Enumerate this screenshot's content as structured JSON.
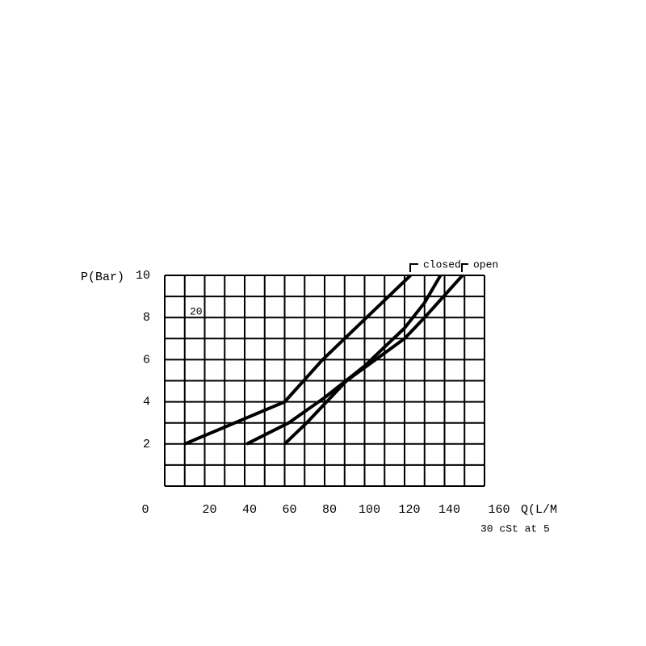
{
  "chart_data": {
    "type": "line",
    "y_label": "P(Bar)",
    "x_label": "Q(L/M",
    "note": "30 cSt at 5",
    "annotations": [
      "20",
      "closed",
      "open"
    ],
    "xlim": [
      0,
      160
    ],
    "ylim": [
      0,
      10
    ],
    "xticks": [
      0,
      20,
      40,
      60,
      80,
      100,
      120,
      140,
      160
    ],
    "yticks": [
      2,
      4,
      6,
      8,
      10
    ],
    "grid": true,
    "grid_step_x": 10,
    "grid_step_y": 1,
    "color": "#000000",
    "series": [
      {
        "x": [
          10,
          60,
          79,
          101,
          123
        ],
        "values": [
          2,
          4,
          6,
          8,
          10
        ]
      },
      {
        "x": [
          41,
          62,
          80,
          100,
          120,
          130,
          138
        ],
        "values": [
          2,
          3,
          4.2,
          5.7,
          7.5,
          8.7,
          10
        ]
      },
      {
        "x": [
          60,
          71,
          91,
          120,
          131,
          149
        ],
        "values": [
          2,
          3,
          5,
          7,
          8.1,
          10
        ]
      }
    ]
  }
}
